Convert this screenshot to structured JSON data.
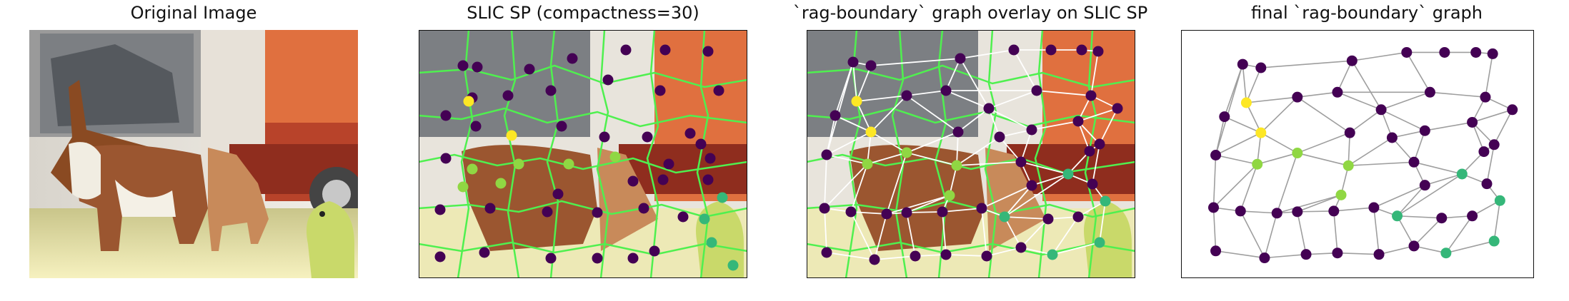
{
  "panels": {
    "p1": {
      "title": "Original Image"
    },
    "p2": {
      "title": "SLIC SP (compactness=30)"
    },
    "p3": {
      "title": "`rag-boundary` graph overlay on SLIC SP"
    },
    "p4": {
      "title": "final `rag-boundary` graph"
    }
  },
  "colors": {
    "node_dark": "#440154",
    "node_yellow": "#fde725",
    "node_lightgreen": "#90d743",
    "node_teal": "#35b779",
    "edge_overlay": "#ffffff",
    "edge_graph": "#9e9e9e",
    "superpixel_boundary": "#4ff04f"
  }
}
